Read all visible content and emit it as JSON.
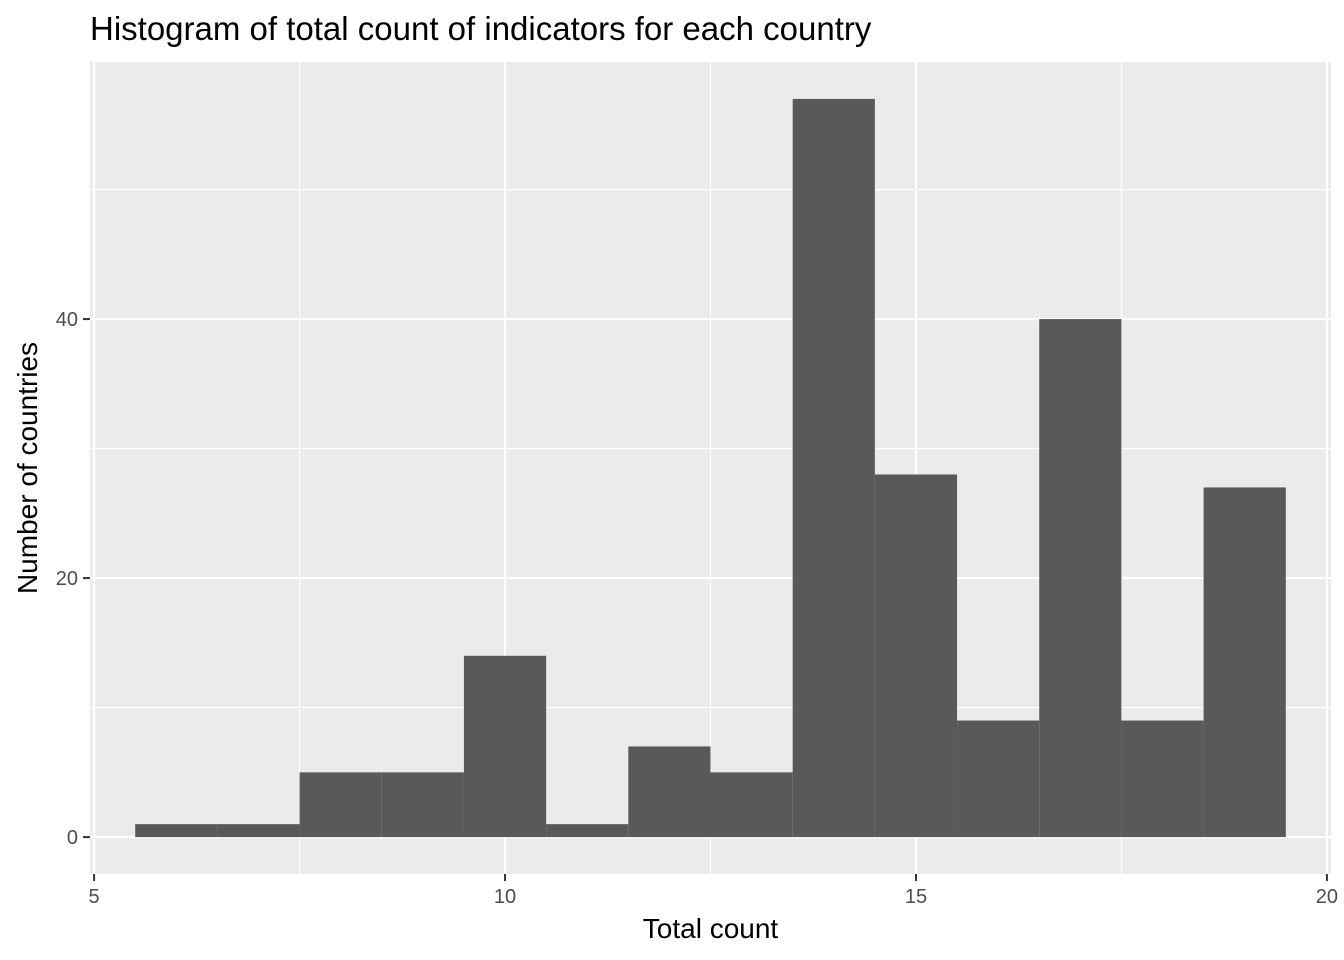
{
  "chart_data": {
    "type": "bar",
    "title": "Histogram of total count of indicators for each country",
    "xlabel": "Total count",
    "ylabel": "Number of countries",
    "xlim": [
      4.95,
      20.05
    ],
    "ylim": [
      -2.85,
      59.85
    ],
    "x_ticks": [
      5,
      10,
      15,
      20
    ],
    "x_minor_ticks": [
      7.5,
      12.5,
      17.5
    ],
    "y_ticks": [
      0,
      20,
      40
    ],
    "y_minor_ticks": [
      10,
      30,
      50
    ],
    "bin_width": 1,
    "bins": [
      {
        "x": 6,
        "count": 1
      },
      {
        "x": 7,
        "count": 1
      },
      {
        "x": 8,
        "count": 5
      },
      {
        "x": 9,
        "count": 5
      },
      {
        "x": 10,
        "count": 14
      },
      {
        "x": 11,
        "count": 1
      },
      {
        "x": 12,
        "count": 7
      },
      {
        "x": 13,
        "count": 5
      },
      {
        "x": 14,
        "count": 57
      },
      {
        "x": 15,
        "count": 28
      },
      {
        "x": 16,
        "count": 9
      },
      {
        "x": 17,
        "count": 40
      },
      {
        "x": 18,
        "count": 9
      },
      {
        "x": 19,
        "count": 27
      }
    ],
    "bar_color": "#595959",
    "panel_color": "#ebebeb",
    "grid": true,
    "legend": "none"
  }
}
